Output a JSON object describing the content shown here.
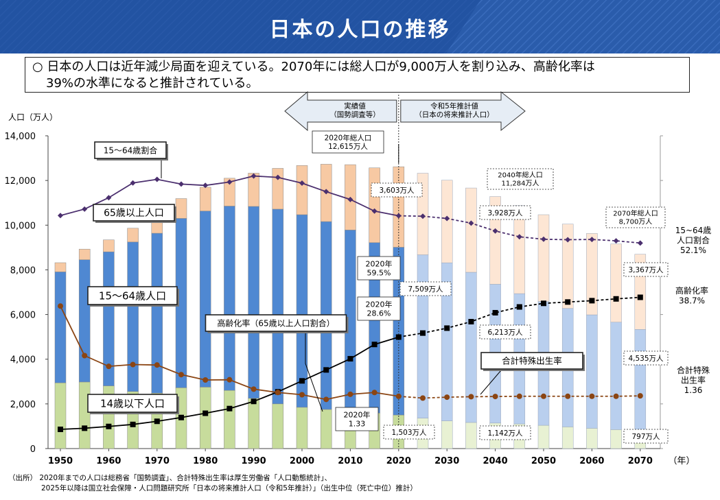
{
  "header": {
    "title": "日本の人口の推移",
    "bg": "#1f4e9c"
  },
  "summary": {
    "line1": "○ 日本の人口は近年減少局面を迎えている。2070年には総人口が9,000万人を割り込み、高齢化率は",
    "line2": "39%の水準になると推計されている。"
  },
  "source": {
    "line1": "（出所） 2020年までの人口は総務省「国勢調査」、合計特殊出生率は厚生労働省「人口動態統計」、",
    "line2": "2025年以降は国立社会保障・人口問題研究所「日本の将来推計人口（令和5年推計）」（出生中位（死亡中位）推計）"
  },
  "colors": {
    "age65_actual": "#f7c9a3",
    "age65_projected": "#fde6d4",
    "age15_64_actual": "#4f88d2",
    "age15_64_projected": "#b9cfee",
    "age0_14_actual": "#c7dc9c",
    "age0_14_projected": "#e8f1d3",
    "working_ratio_line": "#4b2f6e",
    "aging_rate_line": "#000000",
    "tfr_line": "#8b4513",
    "arrow_fill": "#e6edf5"
  },
  "chart_data": {
    "type": "bar",
    "stacked": true,
    "y_left_label": "人口（万人）",
    "x_unit": "（年）",
    "ylim": [
      0,
      14000
    ],
    "y_ticks": [
      "0",
      "2,000",
      "4,000",
      "6,000",
      "8,000",
      "10,000",
      "12,000",
      "14,000"
    ],
    "x_tick_labels": [
      "1950",
      "1960",
      "1970",
      "1980",
      "1990",
      "2000",
      "2010",
      "2020",
      "2030",
      "2040",
      "2050",
      "2060",
      "2070"
    ],
    "categories": [
      1950,
      1955,
      1960,
      1965,
      1970,
      1975,
      1980,
      1985,
      1990,
      1995,
      2000,
      2005,
      2010,
      2015,
      2020,
      2025,
      2030,
      2035,
      2040,
      2045,
      2050,
      2055,
      2060,
      2065,
      2070
    ],
    "projection_start": 2025,
    "series": [
      {
        "name": "14歳以下人口",
        "values": [
          2943,
          2980,
          2807,
          2553,
          2482,
          2722,
          2751,
          2603,
          2249,
          2001,
          1847,
          1752,
          1680,
          1589,
          1503,
          1363,
          1240,
          1169,
          1142,
          1103,
          1041,
          971,
          908,
          848,
          797
        ]
      },
      {
        "name": "15～64歳人口",
        "values": [
          4966,
          5473,
          6000,
          6693,
          7157,
          7581,
          7883,
          8251,
          8590,
          8716,
          8622,
          8409,
          8103,
          7629,
          7509,
          7310,
          7076,
          6722,
          6213,
          5832,
          5540,
          5302,
          5078,
          4809,
          4535
        ]
      },
      {
        "name": "65歳以上人口",
        "values": [
          411,
          475,
          535,
          618,
          733,
          887,
          1065,
          1247,
          1489,
          1826,
          2201,
          2567,
          2925,
          3347,
          3603,
          3653,
          3696,
          3773,
          3928,
          3945,
          3888,
          3777,
          3644,
          3504,
          3367
        ]
      }
    ],
    "line_series": [
      {
        "name": "15～64歳割合",
        "values": [
          10430,
          10720,
          11230,
          11890,
          12050,
          11840,
          11780,
          11930,
          12200,
          12140,
          11880,
          11500,
          11150,
          10630,
          10420,
          10400,
          10300,
          10090,
          9740,
          9480,
          9370,
          9350,
          9360,
          9300,
          9200
        ]
      },
      {
        "name": "高齢化率（65歳以上人口割合）",
        "values": [
          860,
          910,
          990,
          1080,
          1220,
          1390,
          1580,
          1790,
          2110,
          2540,
          3030,
          3520,
          4020,
          4660,
          4990,
          5170,
          5390,
          5680,
          6080,
          6340,
          6500,
          6560,
          6620,
          6700,
          6770
        ]
      },
      {
        "name": "合計特殊出生率",
        "values": [
          6380,
          4160,
          3680,
          3760,
          3740,
          3310,
          3070,
          3080,
          2660,
          2510,
          2410,
          2200,
          2430,
          2510,
          2340,
          2260,
          2300,
          2320,
          2330,
          2340,
          2340,
          2340,
          2340,
          2340,
          2360
        ]
      }
    ],
    "arrows": {
      "actual": "実績値\n（国勢調査等）",
      "projected": "令和5年推計値\n（日本の将来推計人口）"
    },
    "callouts": [
      "15～64歳割合",
      "65歳以上人口",
      "15～64歳人口",
      "高齢化率（65歳以上人口割合）",
      "14歳以下人口",
      "合計特殊出生率",
      "2020年総人口\n12,615万人",
      "2040年総人口\n11,284万人",
      "2070年総人口\n8,700万人",
      "2020年\n59.5%",
      "2020年\n28.6%",
      "2020年\n1.33",
      "3,603万人",
      "7,509万人",
      "1,503万人",
      "3,928万人",
      "6,213万人",
      "1,142万人",
      "3,367万人",
      "4,535万人",
      "797万人"
    ],
    "right_labels": [
      "15~64歳\n人口割合\n52.1%",
      "高齢化率\n38.7%",
      "合計特殊\n出生率\n1.36"
    ]
  }
}
